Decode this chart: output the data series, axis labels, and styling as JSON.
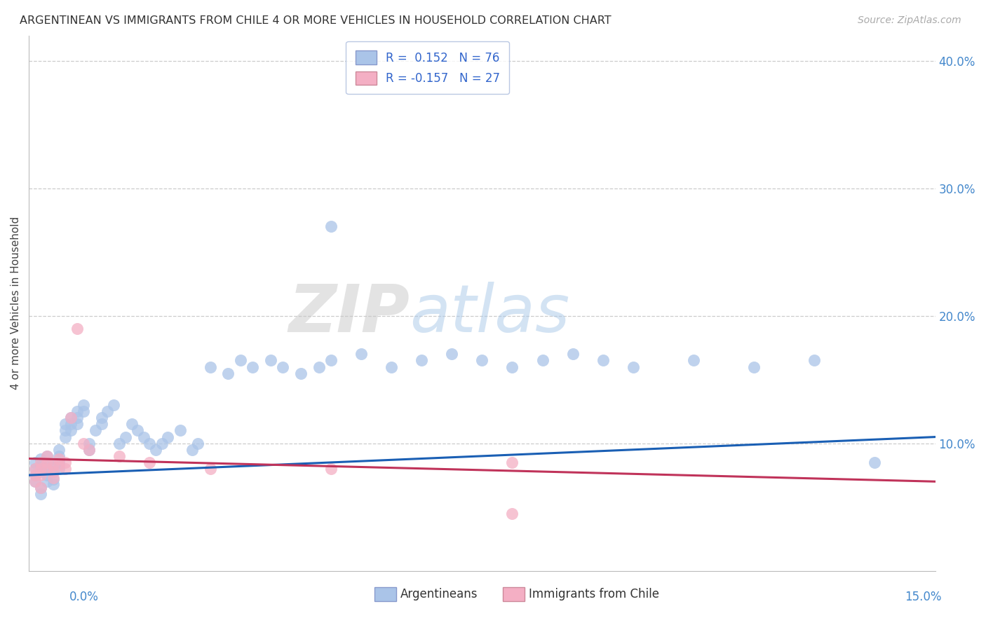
{
  "title": "ARGENTINEAN VS IMMIGRANTS FROM CHILE 4 OR MORE VEHICLES IN HOUSEHOLD CORRELATION CHART",
  "source": "Source: ZipAtlas.com",
  "ylabel": "4 or more Vehicles in Household",
  "legend_blue_R": " 0.152",
  "legend_blue_N": "76",
  "legend_pink_R": "-0.157",
  "legend_pink_N": "27",
  "legend_label_blue": "Argentineans",
  "legend_label_pink": "Immigrants from Chile",
  "blue_color": "#aac4e8",
  "pink_color": "#f4afc4",
  "trendline_blue_color": "#1a5fb4",
  "trendline_pink_color": "#c0335a",
  "watermark_zip": "ZIP",
  "watermark_atlas": "atlas",
  "xlim": [
    0.0,
    0.15
  ],
  "ylim": [
    0.0,
    0.42
  ],
  "blue_x": [
    0.001,
    0.001,
    0.001,
    0.001,
    0.002,
    0.002,
    0.002,
    0.002,
    0.002,
    0.003,
    0.003,
    0.003,
    0.003,
    0.003,
    0.004,
    0.004,
    0.004,
    0.004,
    0.005,
    0.005,
    0.005,
    0.005,
    0.006,
    0.006,
    0.006,
    0.007,
    0.007,
    0.007,
    0.008,
    0.008,
    0.008,
    0.009,
    0.009,
    0.01,
    0.01,
    0.011,
    0.012,
    0.012,
    0.013,
    0.014,
    0.015,
    0.016,
    0.017,
    0.018,
    0.019,
    0.02,
    0.021,
    0.022,
    0.023,
    0.025,
    0.027,
    0.028,
    0.03,
    0.033,
    0.035,
    0.037,
    0.04,
    0.042,
    0.045,
    0.048,
    0.05,
    0.055,
    0.06,
    0.065,
    0.07,
    0.075,
    0.08,
    0.085,
    0.09,
    0.095,
    0.1,
    0.11,
    0.12,
    0.13,
    0.14,
    0.05
  ],
  "blue_y": [
    0.08,
    0.075,
    0.085,
    0.07,
    0.082,
    0.078,
    0.088,
    0.065,
    0.06,
    0.09,
    0.085,
    0.08,
    0.075,
    0.07,
    0.083,
    0.078,
    0.072,
    0.068,
    0.095,
    0.09,
    0.085,
    0.08,
    0.115,
    0.11,
    0.105,
    0.12,
    0.115,
    0.11,
    0.125,
    0.12,
    0.115,
    0.13,
    0.125,
    0.1,
    0.095,
    0.11,
    0.115,
    0.12,
    0.125,
    0.13,
    0.1,
    0.105,
    0.115,
    0.11,
    0.105,
    0.1,
    0.095,
    0.1,
    0.105,
    0.11,
    0.095,
    0.1,
    0.16,
    0.155,
    0.165,
    0.16,
    0.165,
    0.16,
    0.155,
    0.16,
    0.165,
    0.17,
    0.16,
    0.165,
    0.17,
    0.165,
    0.16,
    0.165,
    0.17,
    0.165,
    0.16,
    0.165,
    0.16,
    0.165,
    0.085,
    0.27
  ],
  "pink_x": [
    0.001,
    0.001,
    0.001,
    0.002,
    0.002,
    0.002,
    0.002,
    0.003,
    0.003,
    0.003,
    0.004,
    0.004,
    0.004,
    0.005,
    0.005,
    0.006,
    0.006,
    0.007,
    0.008,
    0.009,
    0.01,
    0.015,
    0.02,
    0.03,
    0.05,
    0.08,
    0.08
  ],
  "pink_y": [
    0.08,
    0.075,
    0.07,
    0.085,
    0.08,
    0.075,
    0.065,
    0.09,
    0.085,
    0.08,
    0.083,
    0.078,
    0.073,
    0.088,
    0.083,
    0.085,
    0.08,
    0.12,
    0.19,
    0.1,
    0.095,
    0.09,
    0.085,
    0.08,
    0.08,
    0.085,
    0.045
  ],
  "trendline_blue_x0": 0.0,
  "trendline_blue_y0": 0.075,
  "trendline_blue_x1": 0.15,
  "trendline_blue_y1": 0.105,
  "trendline_pink_x0": 0.0,
  "trendline_pink_y0": 0.088,
  "trendline_pink_x1": 0.15,
  "trendline_pink_y1": 0.07
}
